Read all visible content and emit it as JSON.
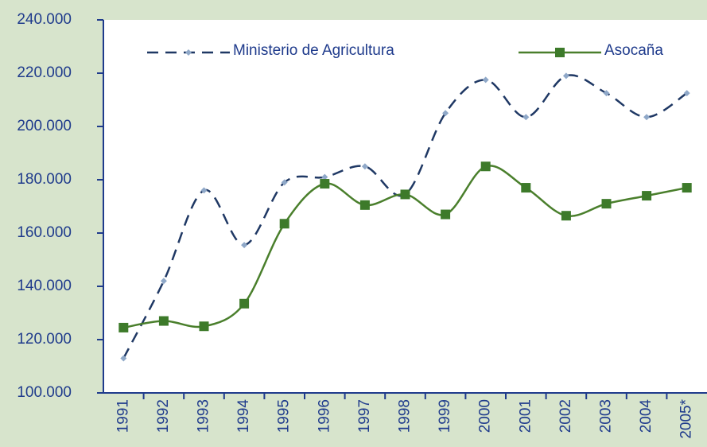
{
  "chart_data": {
    "type": "line",
    "categories": [
      "1991",
      "1992",
      "1993",
      "1994",
      "1995",
      "1996",
      "1997",
      "1998",
      "1999",
      "2000",
      "2001",
      "2002",
      "2003",
      "2004",
      "2005*"
    ],
    "series": [
      {
        "name": "Ministerio de Agricultura",
        "color": "#1f3864",
        "marker_color": "#8fa8c8",
        "values": [
          113000,
          142000,
          176000,
          155500,
          179000,
          181000,
          185000,
          174500,
          205000,
          217500,
          203500,
          219000,
          212500,
          203500,
          212500
        ]
      },
      {
        "name": "Asocaña",
        "color": "#4a7f2c",
        "marker_color": "#3d7a2a",
        "values": [
          124500,
          127000,
          125000,
          133500,
          163500,
          178500,
          170500,
          174500,
          167000,
          185000,
          177000,
          166500,
          171000,
          174000,
          177000
        ]
      }
    ],
    "ylim": [
      100000,
      240000
    ],
    "yticks": [
      {
        "value": 100000,
        "label": "100.000"
      },
      {
        "value": 120000,
        "label": "120.000"
      },
      {
        "value": 140000,
        "label": "140.000"
      },
      {
        "value": 160000,
        "label": "160.000"
      },
      {
        "value": 180000,
        "label": "180.000"
      },
      {
        "value": 200000,
        "label": "200.000"
      },
      {
        "value": 220000,
        "label": "220.000"
      },
      {
        "value": 240000,
        "label": "240.000"
      }
    ],
    "legend": "top"
  }
}
